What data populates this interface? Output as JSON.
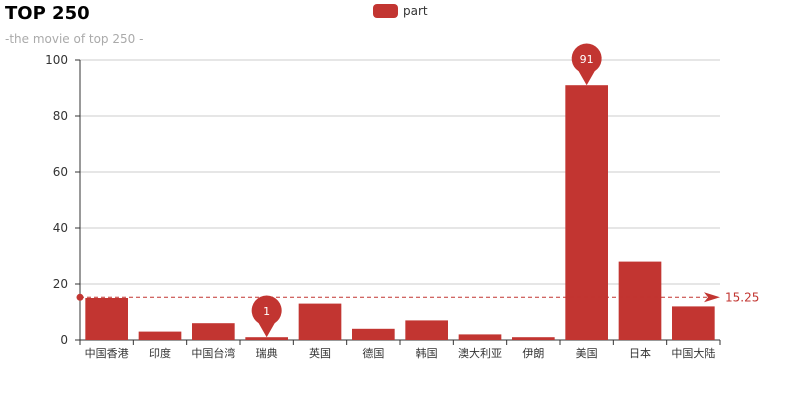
{
  "chart_data": {
    "type": "bar",
    "title": "TOP 250",
    "subtitle": "-the movie of top 250 -",
    "legend": [
      "part"
    ],
    "color": "#c23531",
    "categories": [
      "中国香港",
      "印度",
      "中国台湾",
      "瑞典",
      "英国",
      "德国",
      "韩国",
      "澳大利亚",
      "伊朗",
      "美国",
      "日本",
      "中国大陆"
    ],
    "series": [
      {
        "name": "part",
        "values": [
          15,
          3,
          6,
          1,
          13,
          4,
          7,
          2,
          1,
          91,
          28,
          12
        ]
      }
    ],
    "ylim": [
      0,
      100
    ],
    "yticks": [
      0,
      20,
      40,
      60,
      80,
      100
    ],
    "mark_points": [
      {
        "category": "瑞典",
        "value": 1,
        "label": "1"
      },
      {
        "category": "美国",
        "value": 91,
        "label": "91"
      }
    ],
    "mark_line": {
      "value": 15.25,
      "label": "15.25"
    },
    "grid": true,
    "legend_position": "top-center"
  }
}
